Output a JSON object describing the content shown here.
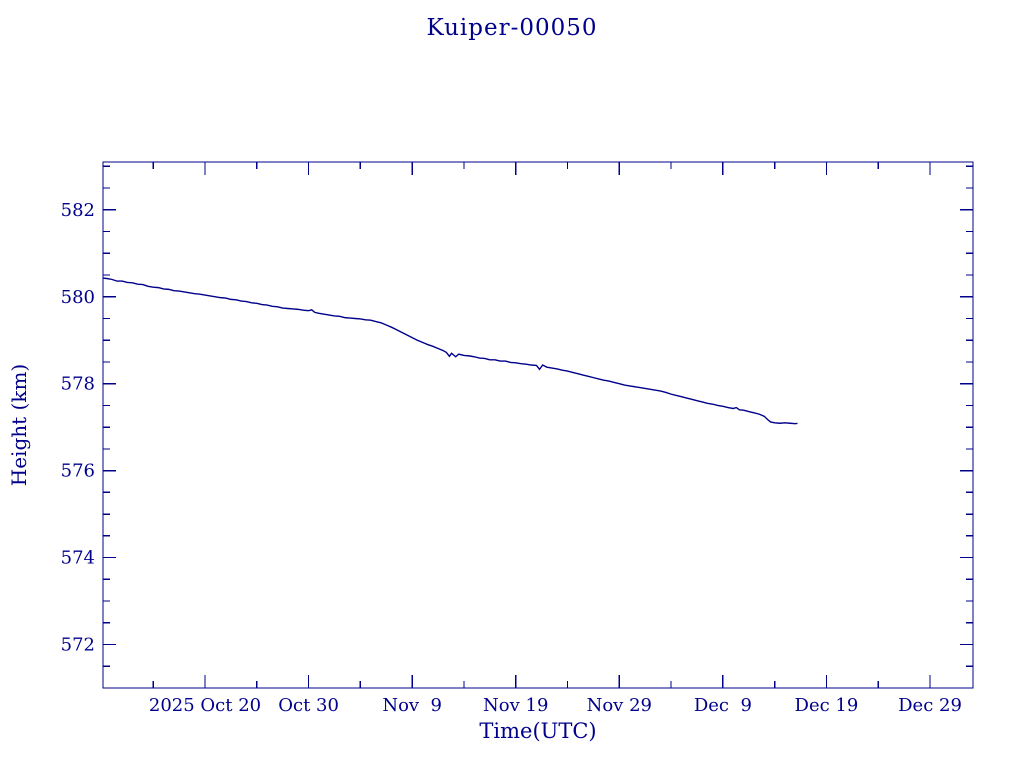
{
  "page": {
    "title": "Kuiper-00050",
    "background_color": "#ffffff",
    "accent_color": "#00008b"
  },
  "chart_data": {
    "type": "line",
    "title": "Kuiper-00050",
    "xlabel": "Time(UTC)",
    "ylabel": "Height (km)",
    "line_color": "#00008b",
    "axis_color": "#00008b",
    "grid": false,
    "legend": false,
    "x_unit": "days since 2025 Oct 10 (UTC)",
    "x_domain": [
      0.15,
      84.15
    ],
    "y_domain": [
      571.0,
      583.1
    ],
    "x_major_ticks": [
      {
        "day": 10,
        "label": "2025 Oct 20"
      },
      {
        "day": 20,
        "label": "Oct 30"
      },
      {
        "day": 30,
        "label": "Nov  9"
      },
      {
        "day": 40,
        "label": "Nov 19"
      },
      {
        "day": 50,
        "label": "Nov 29"
      },
      {
        "day": 60,
        "label": "Dec  9"
      },
      {
        "day": 70,
        "label": "Dec 19"
      },
      {
        "day": 80,
        "label": "Dec 29"
      }
    ],
    "x_minor_ticks": [
      5,
      15,
      25,
      35,
      45,
      55,
      65,
      75
    ],
    "y_major_ticks": [
      {
        "value": 572,
        "label": "572"
      },
      {
        "value": 574,
        "label": "574"
      },
      {
        "value": 576,
        "label": "576"
      },
      {
        "value": 578,
        "label": "578"
      },
      {
        "value": 580,
        "label": "580"
      },
      {
        "value": 582,
        "label": "582"
      }
    ],
    "y_minor_ticks": [
      571.5,
      572.5,
      573.0,
      573.5,
      574.5,
      575.0,
      575.5,
      576.5,
      577.0,
      577.5,
      578.5,
      579.0,
      579.5,
      580.5,
      581.0,
      581.5,
      582.5,
      583.0
    ],
    "series": [
      {
        "name": "height_km",
        "points": [
          [
            0.15,
            580.43
          ],
          [
            0.5,
            580.42
          ],
          [
            1,
            580.4
          ],
          [
            1.5,
            580.36
          ],
          [
            2,
            580.36
          ],
          [
            2.5,
            580.33
          ],
          [
            3,
            580.32
          ],
          [
            3.5,
            580.29
          ],
          [
            4,
            580.28
          ],
          [
            4.5,
            580.24
          ],
          [
            5,
            580.22
          ],
          [
            5.5,
            580.21
          ],
          [
            6,
            580.18
          ],
          [
            6.5,
            580.17
          ],
          [
            7,
            580.14
          ],
          [
            7.5,
            580.13
          ],
          [
            8,
            580.11
          ],
          [
            8.5,
            580.09
          ],
          [
            9,
            580.07
          ],
          [
            9.5,
            580.06
          ],
          [
            10,
            580.04
          ],
          [
            10.5,
            580.02
          ],
          [
            11,
            580.0
          ],
          [
            11.5,
            579.98
          ],
          [
            12,
            579.97
          ],
          [
            12.5,
            579.94
          ],
          [
            13,
            579.93
          ],
          [
            13.5,
            579.9
          ],
          [
            14,
            579.89
          ],
          [
            14.5,
            579.86
          ],
          [
            15,
            579.85
          ],
          [
            15.5,
            579.82
          ],
          [
            16,
            579.81
          ],
          [
            16.5,
            579.78
          ],
          [
            17,
            579.77
          ],
          [
            17.5,
            579.74
          ],
          [
            18,
            579.73
          ],
          [
            18.5,
            579.72
          ],
          [
            19,
            579.71
          ],
          [
            19.5,
            579.69
          ],
          [
            20,
            579.68
          ],
          [
            20.3,
            579.7
          ],
          [
            20.6,
            579.64
          ],
          [
            21,
            579.62
          ],
          [
            21.5,
            579.6
          ],
          [
            22,
            579.58
          ],
          [
            22.5,
            579.56
          ],
          [
            23,
            579.55
          ],
          [
            23.5,
            579.52
          ],
          [
            24,
            579.51
          ],
          [
            24.5,
            579.5
          ],
          [
            25,
            579.49
          ],
          [
            25.5,
            579.47
          ],
          [
            26,
            579.46
          ],
          [
            26.5,
            579.43
          ],
          [
            27,
            579.4
          ],
          [
            27.5,
            579.35
          ],
          [
            28,
            579.3
          ],
          [
            28.5,
            579.24
          ],
          [
            29,
            579.18
          ],
          [
            29.5,
            579.12
          ],
          [
            30,
            579.06
          ],
          [
            30.5,
            579.0
          ],
          [
            31,
            578.95
          ],
          [
            31.5,
            578.9
          ],
          [
            32,
            578.86
          ],
          [
            32.5,
            578.81
          ],
          [
            33,
            578.76
          ],
          [
            33.3,
            578.72
          ],
          [
            33.6,
            578.63
          ],
          [
            33.8,
            578.7
          ],
          [
            34.2,
            578.62
          ],
          [
            34.5,
            578.68
          ],
          [
            35,
            578.65
          ],
          [
            35.5,
            578.64
          ],
          [
            36,
            578.62
          ],
          [
            36.5,
            578.59
          ],
          [
            37,
            578.58
          ],
          [
            37.5,
            578.55
          ],
          [
            38,
            578.55
          ],
          [
            38.5,
            578.52
          ],
          [
            39,
            578.52
          ],
          [
            39.5,
            578.49
          ],
          [
            40,
            578.48
          ],
          [
            40.5,
            578.46
          ],
          [
            41,
            578.45
          ],
          [
            41.5,
            578.43
          ],
          [
            42,
            578.42
          ],
          [
            42.3,
            578.33
          ],
          [
            42.6,
            578.43
          ],
          [
            43,
            578.38
          ],
          [
            43.5,
            578.36
          ],
          [
            44,
            578.34
          ],
          [
            44.5,
            578.31
          ],
          [
            45,
            578.29
          ],
          [
            45.5,
            578.26
          ],
          [
            46,
            578.23
          ],
          [
            46.5,
            578.2
          ],
          [
            47,
            578.17
          ],
          [
            47.5,
            578.14
          ],
          [
            48,
            578.11
          ],
          [
            48.5,
            578.08
          ],
          [
            49,
            578.06
          ],
          [
            49.5,
            578.03
          ],
          [
            50,
            578.0
          ],
          [
            50.5,
            577.97
          ],
          [
            51,
            577.95
          ],
          [
            51.5,
            577.93
          ],
          [
            52,
            577.91
          ],
          [
            52.5,
            577.89
          ],
          [
            53,
            577.87
          ],
          [
            53.5,
            577.85
          ],
          [
            54,
            577.83
          ],
          [
            54.5,
            577.8
          ],
          [
            55,
            577.76
          ],
          [
            55.5,
            577.73
          ],
          [
            56,
            577.7
          ],
          [
            56.5,
            577.67
          ],
          [
            57,
            577.64
          ],
          [
            57.5,
            577.61
          ],
          [
            58,
            577.58
          ],
          [
            58.5,
            577.55
          ],
          [
            59,
            577.53
          ],
          [
            59.5,
            577.5
          ],
          [
            60,
            577.48
          ],
          [
            60.5,
            577.45
          ],
          [
            61,
            577.43
          ],
          [
            61.3,
            577.45
          ],
          [
            61.6,
            577.4
          ],
          [
            62,
            577.39
          ],
          [
            62.5,
            577.36
          ],
          [
            63,
            577.33
          ],
          [
            63.5,
            577.3
          ],
          [
            64,
            577.25
          ],
          [
            64.3,
            577.18
          ],
          [
            64.6,
            577.12
          ],
          [
            65,
            577.1
          ],
          [
            65.5,
            577.09
          ],
          [
            66,
            577.1
          ],
          [
            66.5,
            577.09
          ],
          [
            67,
            577.08
          ],
          [
            67.2,
            577.09
          ]
        ]
      }
    ]
  }
}
